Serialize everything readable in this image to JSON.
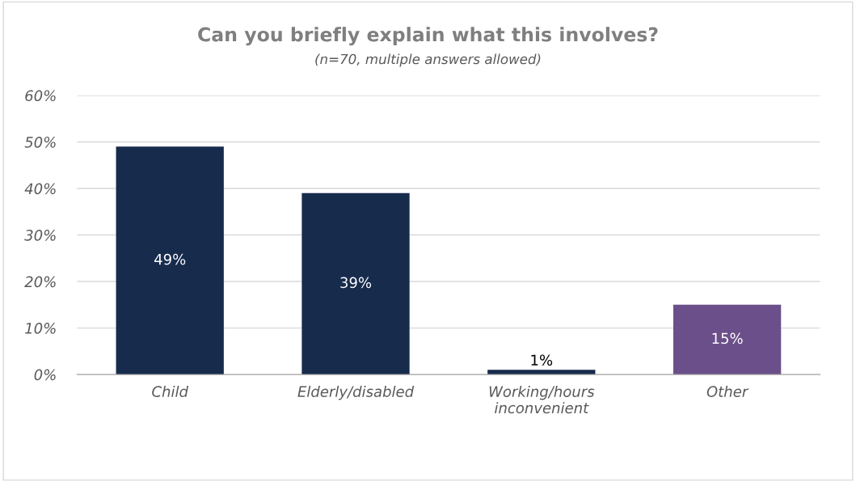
{
  "chart_data": {
    "type": "bar",
    "title": "Can you briefly explain what this involves?",
    "subtitle": "(n=70, multiple answers allowed)",
    "categories": [
      "Child",
      "Elderly/disabled",
      "Working/hours\ninconvenient",
      "Other"
    ],
    "values": [
      49,
      39,
      1,
      15
    ],
    "colors": [
      "#172b4d",
      "#172b4d",
      "#172b4d",
      "#6b4f8a"
    ],
    "ylim": [
      0,
      60
    ],
    "yticks": [
      {
        "value": 0,
        "label": "0%"
      },
      {
        "value": 10,
        "label": "10%"
      },
      {
        "value": 20,
        "label": "20%"
      },
      {
        "value": 30,
        "label": "30%"
      },
      {
        "value": 40,
        "label": "40%"
      },
      {
        "value": 50,
        "label": "50%"
      },
      {
        "value": 60,
        "label": "60%"
      }
    ],
    "value_labels": [
      "49%",
      "39%",
      "1%",
      "15%"
    ],
    "grid": "y",
    "legend": false
  }
}
